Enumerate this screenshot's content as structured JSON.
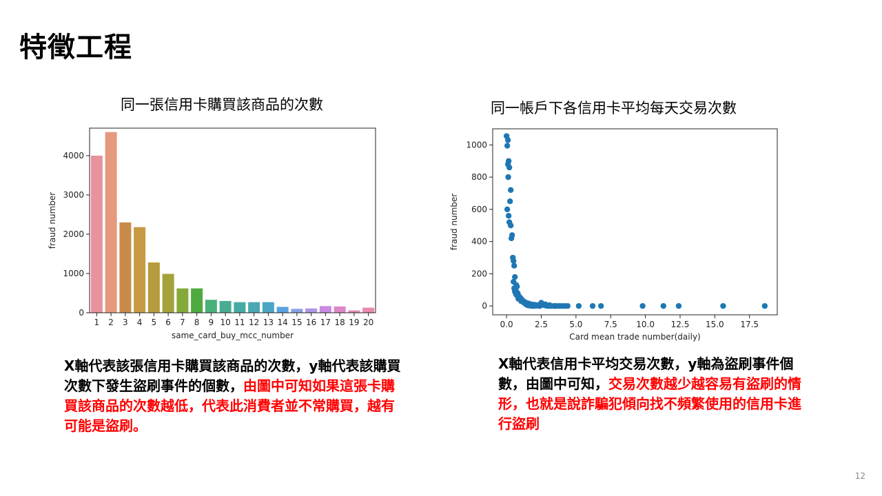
{
  "slide": {
    "title": "特徵工程",
    "page_number": "12"
  },
  "descriptions": {
    "left": {
      "normal": "X軸代表該張信用卡購買該商品的次數，y軸代表該購買次數下發生盜刷事件的個數，",
      "highlight": "由圖中可知如果這張卡購買該商品的次數越低，代表此消費者並不常購買，越有可能是盜刷。"
    },
    "right": {
      "normal": "X軸代表信用卡平均交易次數，y軸為盜刷事件個數，由圖中可知，",
      "highlight": "交易次數越少越容易有盜刷的情形，也就是說詐騙犯傾向找不頻繁使用的信用卡進行盜刷"
    },
    "highlight_color": "#ff0000"
  },
  "chart_data": [
    {
      "type": "bar",
      "title": "同一張信用卡購買該商品的次數",
      "xlabel": "same_card_buy_mcc_number",
      "ylabel": "fraud number",
      "categories": [
        "1",
        "2",
        "3",
        "4",
        "5",
        "6",
        "7",
        "8",
        "9",
        "10",
        "11",
        "12",
        "13",
        "14",
        "15",
        "16",
        "17",
        "18",
        "19",
        "20"
      ],
      "values": [
        4000,
        4600,
        2300,
        2180,
        1280,
        990,
        620,
        620,
        330,
        300,
        270,
        270,
        270,
        150,
        100,
        110,
        170,
        160,
        60,
        130
      ],
      "colors": [
        "#e8929e",
        "#e59a7e",
        "#c98a4a",
        "#c89a44",
        "#b69c3c",
        "#a3a33a",
        "#86aa3a",
        "#4fab3f",
        "#4ab07a",
        "#48ac93",
        "#48aaa4",
        "#49a8b4",
        "#4aa6c4",
        "#5aa3dc",
        "#8aa0e6",
        "#ae96e4",
        "#cb8ae0",
        "#de86c8",
        "#e38ab4",
        "#e68cb0"
      ],
      "ylim": [
        0,
        4700
      ],
      "yticks": [
        0,
        1000,
        2000,
        3000,
        4000
      ],
      "grid": false
    },
    {
      "type": "scatter",
      "title": "同一帳戶下各信用卡平均每天交易次數",
      "xlabel": "Card mean trade number(daily)",
      "ylabel": "fraud number",
      "xlim": [
        -1,
        19.5
      ],
      "ylim": [
        -55,
        1100
      ],
      "xticks": [
        0.0,
        2.5,
        5.0,
        7.5,
        10.0,
        12.5,
        15.0,
        17.5
      ],
      "yticks": [
        0,
        200,
        400,
        600,
        800,
        1000
      ],
      "color": "#1f77b4",
      "grid": false,
      "x": [
        0.0,
        0.1,
        0.05,
        0.15,
        0.1,
        0.2,
        0.12,
        0.3,
        0.25,
        0.05,
        0.15,
        0.2,
        0.3,
        0.4,
        0.35,
        0.45,
        0.5,
        0.55,
        0.6,
        0.5,
        0.7,
        0.65,
        0.8,
        0.9,
        0.75,
        1.0,
        1.1,
        1.2,
        1.3,
        1.4,
        1.5,
        1.6,
        1.7,
        1.8,
        1.9,
        2.0,
        2.1,
        2.2,
        2.3,
        2.4,
        2.5,
        2.6,
        2.7,
        2.8,
        2.9,
        3.0,
        3.2,
        3.4,
        3.6,
        3.8,
        4.0,
        4.2,
        4.4,
        5.2,
        6.2,
        6.8,
        9.8,
        11.3,
        12.4,
        15.6,
        18.6,
        0.6,
        0.8,
        1.0,
        1.2,
        1.4,
        1.6,
        1.8,
        2.0,
        2.2,
        2.5,
        2.8,
        3.1,
        3.5,
        0.7,
        0.9,
        1.1,
        1.3,
        1.5,
        0.55,
        0.65,
        0.85,
        1.05,
        1.25
      ],
      "y": [
        1055,
        1030,
        995,
        900,
        880,
        860,
        800,
        720,
        650,
        600,
        560,
        520,
        500,
        440,
        420,
        300,
        280,
        250,
        180,
        150,
        130,
        100,
        80,
        60,
        120,
        50,
        40,
        30,
        20,
        10,
        5,
        3,
        2,
        1,
        0,
        0,
        5,
        2,
        1,
        0,
        15,
        10,
        5,
        3,
        1,
        0,
        0,
        0,
        0,
        0,
        0,
        0,
        0,
        0,
        0,
        0,
        0,
        0,
        0,
        0,
        0,
        90,
        60,
        40,
        30,
        20,
        15,
        10,
        8,
        5,
        20,
        10,
        5,
        0,
        70,
        50,
        35,
        25,
        15,
        110,
        80,
        45,
        30,
        20
      ]
    }
  ]
}
